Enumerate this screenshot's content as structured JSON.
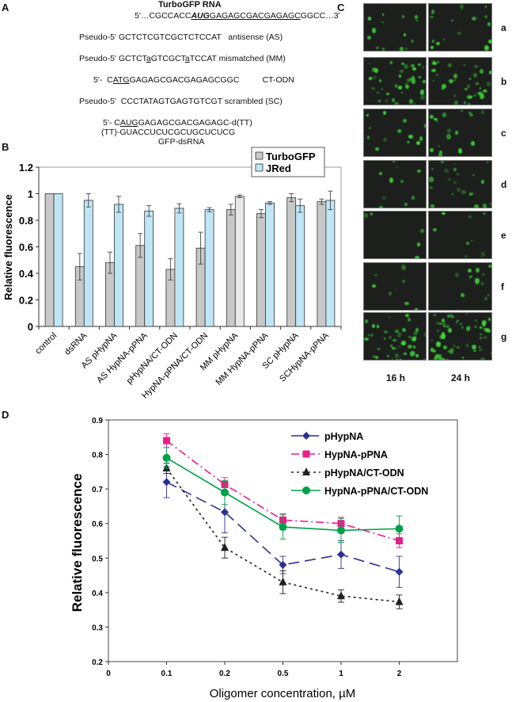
{
  "panels": {
    "a": "A",
    "b": "B",
    "c": "C",
    "d": "D"
  },
  "panel_a": {
    "title": "TurboGFP RNA",
    "lines": [
      {
        "segments": [
          {
            "t": "5'…CGCCACC",
            "s": ""
          },
          {
            "t": "AUG",
            "s": "bi"
          },
          {
            "t": "GAGAGCGACGAGAGC",
            "s": "u"
          },
          {
            "t": "GGCC…3'",
            "s": ""
          }
        ]
      },
      {
        "segments": [
          {
            "t": "Pseudo-5' GCTCTCGTCGCTCTCCAT   antisense (AS)",
            "s": ""
          }
        ]
      },
      {
        "segments": [
          {
            "t": "Pseudo-5' GCTCT",
            "s": ""
          },
          {
            "t": "a",
            "s": "u"
          },
          {
            "t": "GTCGCT",
            "s": ""
          },
          {
            "t": "a",
            "s": "u"
          },
          {
            "t": "TCCAT mismatched (MM)",
            "s": ""
          }
        ]
      },
      {
        "segments": [
          {
            "t": "5'-  C",
            "s": ""
          },
          {
            "t": "ATG",
            "s": "u"
          },
          {
            "t": "GAGAGCGACGAGAGCGGC          CT-ODN",
            "s": ""
          }
        ]
      },
      {
        "segments": [
          {
            "t": "Pseudo-5'  CCCTATAGTGAGTGTCGT scrambled (SC)",
            "s": ""
          }
        ]
      },
      {
        "segments": [
          {
            "t": "5'- C",
            "s": ""
          },
          {
            "t": "AUG",
            "s": "u"
          },
          {
            "t": "GAGAGCGACGAGAGC-d(TT)",
            "s": ""
          }
        ]
      },
      {
        "segments": [
          {
            "t": "(TT)-GUACCUCUCGCUGCUCUCG",
            "s": ""
          }
        ]
      },
      {
        "segments": [
          {
            "t": "GFP-dsRNA",
            "s": ""
          }
        ]
      }
    ]
  },
  "panel_c": {
    "rows": [
      "a",
      "b",
      "c",
      "d",
      "e",
      "f",
      "g"
    ],
    "columns": [
      "16 h",
      "24 h"
    ],
    "fluorescence_color": "#3fd43a"
  },
  "chart_data": [
    {
      "type": "bar",
      "ylabel": "Relative fluorescence",
      "xlabel": "",
      "ylim": [
        0,
        1.2
      ],
      "yticks": [
        "0",
        "0.2",
        "0.4",
        "0.6",
        "0.8",
        "1",
        "1.2"
      ],
      "legend_position": "top-right",
      "categories": [
        "control",
        "dsRNA",
        "AS pHypNA",
        "AS HypNA-pPNA",
        "pHypNA/CT-ODN",
        "HypNA-pPNA/CT-ODN",
        "MM pHypNA",
        "MM HypNA-pPNA",
        "SC pHypNA",
        "SCHypNA-pPNA"
      ],
      "series": [
        {
          "name": "TurboGFP",
          "color": "#c8c8c8",
          "values": [
            1,
            0.45,
            0.48,
            0.61,
            0.43,
            0.59,
            0.88,
            0.85,
            0.97,
            0.94
          ],
          "errors": [
            0,
            0.1,
            0.08,
            0.09,
            0.08,
            0.12,
            0.04,
            0.03,
            0.03,
            0.02
          ]
        },
        {
          "name": "JRed",
          "color": "#bfe6f5",
          "values": [
            1,
            0.95,
            0.92,
            0.87,
            0.89,
            0.88,
            0.98,
            0.93,
            0.91,
            0.95
          ],
          "errors": [
            0,
            0.05,
            0.06,
            0.04,
            0.035,
            0.015,
            0.01,
            0.01,
            0.05,
            0.07
          ]
        }
      ],
      "highlight": {
        "category": "MM pHypNA",
        "series": "JRed",
        "color": "#e8e8e8"
      },
      "grid": false
    },
    {
      "type": "line",
      "ylabel": "Relative fluorescence",
      "xlabel": "Oligomer concentration, µM",
      "x_ticks": [
        "0",
        "0.1",
        "0.2",
        "0.5",
        "1",
        "2"
      ],
      "x": [
        "0.1",
        "0.2",
        "0.5",
        "1",
        "2"
      ],
      "ylim": [
        0.2,
        0.9
      ],
      "yticks": [
        "0.2",
        "0.3",
        "0.4",
        "0.5",
        "0.6",
        "0.7",
        "0.8",
        "0.9"
      ],
      "legend_position": "top-right",
      "grid": false,
      "series": [
        {
          "name": "pHypNA",
          "color": "#2e3192",
          "marker": "diamond",
          "dash": "14 7",
          "values": [
            0.72,
            0.633,
            0.48,
            0.51,
            0.46
          ],
          "errors": [
            0.045,
            0.06,
            0.025,
            0.04,
            0.045
          ]
        },
        {
          "name": "HypNA-pPNA",
          "color": "#ec1c8c",
          "marker": "square",
          "dash": "10 4 2 4",
          "values": [
            0.84,
            0.713,
            0.61,
            0.6,
            0.55
          ],
          "errors": [
            0.02,
            0.02,
            0.018,
            0.018,
            0.02
          ]
        },
        {
          "name": "pHypNA/CT-ODN",
          "color": "#231f20",
          "marker": "triangle",
          "dash": "3 4",
          "values": [
            0.76,
            0.53,
            0.43,
            0.39,
            0.373
          ],
          "errors": [
            0.015,
            0.03,
            0.033,
            0.018,
            0.02
          ]
        },
        {
          "name": "HypNA-pPNA/CT-ODN",
          "color": "#00a14b",
          "marker": "circle",
          "dash": "",
          "values": [
            0.79,
            0.69,
            0.59,
            0.58,
            0.585
          ],
          "errors": [
            0.03,
            0.035,
            0.035,
            0.035,
            0.037
          ]
        }
      ]
    }
  ]
}
